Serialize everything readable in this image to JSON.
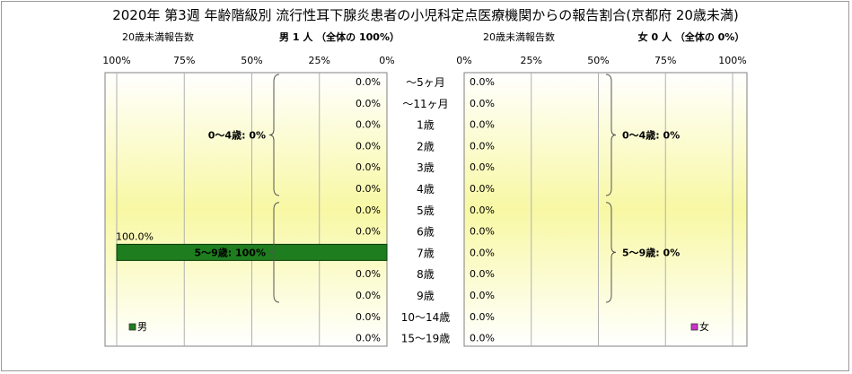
{
  "chart_data": {
    "type": "bar",
    "title": "2020年 第3週 年齢階級別 流行性耳下腺炎患者の小児科定点医療機関からの報告割合(京都府 20歳未満)",
    "categories": [
      "～5ヶ月",
      "～11ヶ月",
      "1歳",
      "2歳",
      "3歳",
      "4歳",
      "5歳",
      "6歳",
      "7歳",
      "8歳",
      "9歳",
      "10～14歳",
      "15～19歳"
    ],
    "xlim": [
      0,
      100
    ],
    "x_ticks": [
      "0%",
      "25%",
      "50%",
      "75%",
      "100%"
    ],
    "grid": true,
    "panels": [
      {
        "side": "left",
        "header_left": "20歳未満報告数",
        "header_right": "男  1 人  （全体の  100%）",
        "series": [
          {
            "name": "男",
            "color": "#1e7d1e",
            "values": [
              0,
              0,
              0,
              0,
              0,
              0,
              0,
              0,
              100,
              0,
              0,
              0,
              0
            ]
          }
        ],
        "value_labels": [
          "0.0%",
          "0.0%",
          "0.0%",
          "0.0%",
          "0.0%",
          "0.0%",
          "0.0%",
          "0.0%",
          "100.0%",
          "0.0%",
          "0.0%",
          "0.0%",
          "0.0%"
        ],
        "group_labels": [
          {
            "text": "0～4歳: 0%",
            "from": 0,
            "to": 5
          },
          {
            "text": "5～9歳: 100%",
            "from": 6,
            "to": 10
          }
        ],
        "legend": "男",
        "legend_color": "#1e7d1e"
      },
      {
        "side": "right",
        "header_left": "20歳未満報告数",
        "header_right": "女  0 人  （全体の  0%）",
        "series": [
          {
            "name": "女",
            "color": "#cc33cc",
            "values": [
              0,
              0,
              0,
              0,
              0,
              0,
              0,
              0,
              0,
              0,
              0,
              0,
              0
            ]
          }
        ],
        "value_labels": [
          "0.0%",
          "0.0%",
          "0.0%",
          "0.0%",
          "0.0%",
          "0.0%",
          "0.0%",
          "0.0%",
          "0.0%",
          "0.0%",
          "0.0%",
          "0.0%",
          "0.0%"
        ],
        "group_labels": [
          {
            "text": "0～4歳: 0%",
            "from": 0,
            "to": 5
          },
          {
            "text": "5～9歳: 0%",
            "from": 6,
            "to": 10
          }
        ],
        "legend": "女",
        "legend_color": "#cc33cc"
      }
    ]
  }
}
